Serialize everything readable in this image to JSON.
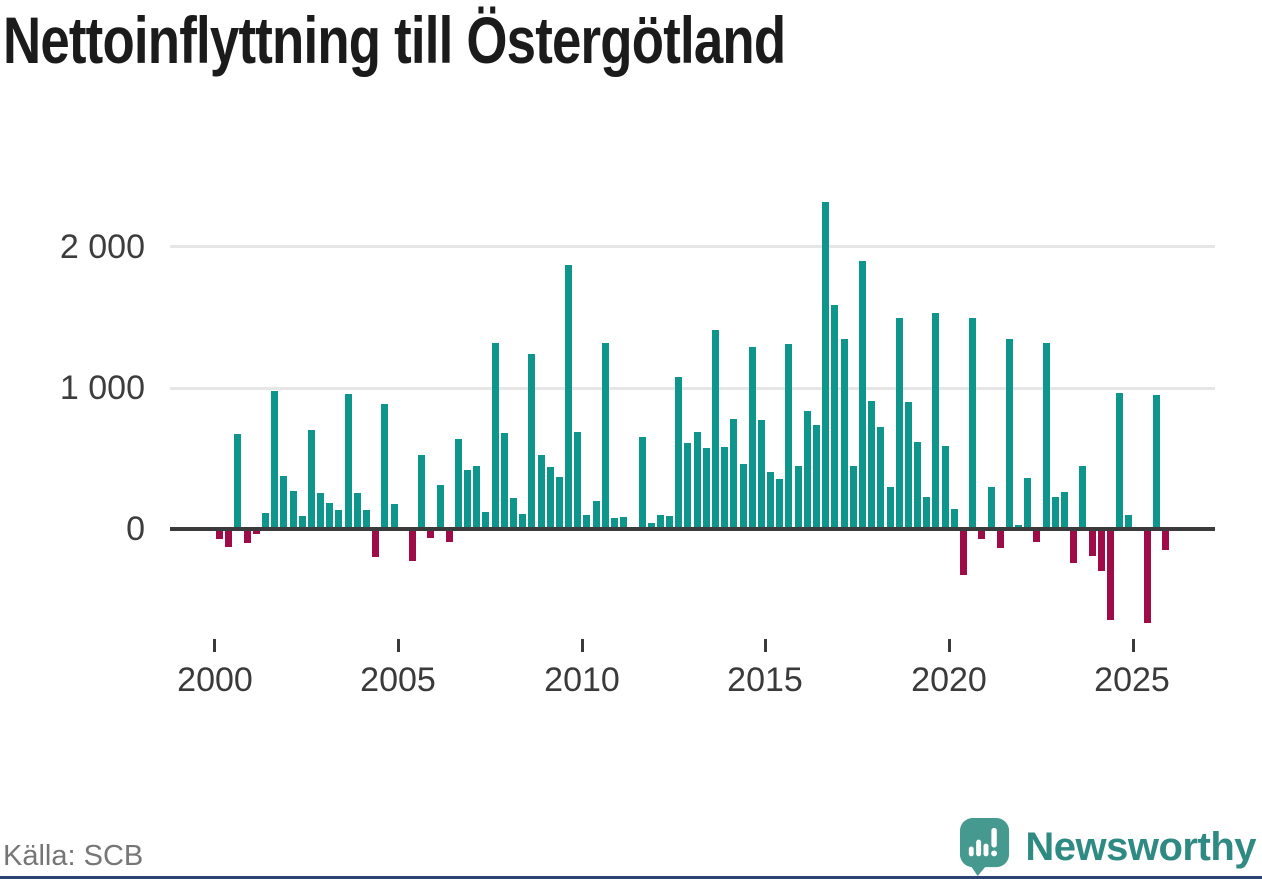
{
  "title": "Nettoinflyttning till Östergötland",
  "source": "Källa: SCB",
  "branding": {
    "name": "Newsworthy",
    "mark_color": "#45998f",
    "text_color": "#2e8a82"
  },
  "colors": {
    "positive": "#0f968c",
    "negative": "#a00c48",
    "grid": "#e6e6e6",
    "axis": "#3b3b3b",
    "bottom_strip": "#2d4373"
  },
  "chart_data": {
    "type": "bar",
    "title": "Nettoinflyttning till Östergötland",
    "xlabel": "",
    "ylabel": "",
    "grid": "horizontal",
    "legend": "none",
    "ylim": [
      -700,
      2400
    ],
    "y_ticks": [
      2000,
      1000,
      0
    ],
    "y_tick_labels": [
      "2 000",
      "1 000",
      "0"
    ],
    "x_tick_labels": [
      "2000",
      "2005",
      "2010",
      "2015",
      "2020",
      "2025"
    ],
    "frequency": "quarterly",
    "x": [
      "2000Q1",
      "2000Q2",
      "2000Q3",
      "2000Q4",
      "2001Q1",
      "2001Q2",
      "2001Q3",
      "2001Q4",
      "2002Q1",
      "2002Q2",
      "2002Q3",
      "2002Q4",
      "2003Q1",
      "2003Q2",
      "2003Q3",
      "2003Q4",
      "2004Q1",
      "2004Q2",
      "2004Q3",
      "2004Q4",
      "2005Q1",
      "2005Q2",
      "2005Q3",
      "2005Q4",
      "2006Q1",
      "2006Q2",
      "2006Q3",
      "2006Q4",
      "2007Q1",
      "2007Q2",
      "2007Q3",
      "2007Q4",
      "2008Q1",
      "2008Q2",
      "2008Q3",
      "2008Q4",
      "2009Q1",
      "2009Q2",
      "2009Q3",
      "2009Q4",
      "2010Q1",
      "2010Q2",
      "2010Q3",
      "2010Q4",
      "2011Q1",
      "2011Q2",
      "2011Q3",
      "2011Q4",
      "2012Q1",
      "2012Q2",
      "2012Q3",
      "2012Q4",
      "2013Q1",
      "2013Q2",
      "2013Q3",
      "2013Q4",
      "2014Q1",
      "2014Q2",
      "2014Q3",
      "2014Q4",
      "2015Q1",
      "2015Q2",
      "2015Q3",
      "2015Q4",
      "2016Q1",
      "2016Q2",
      "2016Q3",
      "2016Q4",
      "2017Q1",
      "2017Q2",
      "2017Q3",
      "2017Q4",
      "2018Q1",
      "2018Q2",
      "2018Q3",
      "2018Q4",
      "2019Q1",
      "2019Q2",
      "2019Q3",
      "2019Q4",
      "2020Q1",
      "2020Q2",
      "2020Q3",
      "2020Q4",
      "2021Q1",
      "2021Q2",
      "2021Q3",
      "2021Q4",
      "2022Q1",
      "2022Q2",
      "2022Q3",
      "2022Q4",
      "2023Q1",
      "2023Q2",
      "2023Q3",
      "2023Q4",
      "2024Q1",
      "2024Q2",
      "2024Q3",
      "2024Q4",
      "2025Q1",
      "2025Q2",
      "2025Q3",
      "2025Q4"
    ],
    "values": [
      -55,
      -115,
      675,
      -85,
      -20,
      115,
      980,
      375,
      270,
      95,
      700,
      255,
      185,
      135,
      960,
      255,
      135,
      -185,
      890,
      180,
      0,
      -215,
      525,
      -50,
      310,
      -75,
      640,
      415,
      450,
      120,
      1320,
      680,
      220,
      105,
      1240,
      525,
      440,
      370,
      1870,
      690,
      100,
      200,
      1320,
      75,
      85,
      0,
      655,
      40,
      100,
      90,
      1080,
      610,
      685,
      575,
      1410,
      580,
      780,
      460,
      1290,
      775,
      405,
      355,
      1310,
      450,
      835,
      740,
      2320,
      1590,
      1350,
      450,
      1900,
      910,
      725,
      295,
      1500,
      900,
      615,
      230,
      1530,
      590,
      140,
      -315,
      1500,
      -60,
      300,
      -120,
      1350,
      30,
      360,
      -80,
      1320,
      230,
      265,
      -225,
      445,
      -175,
      -285,
      -630,
      965,
      100,
      15,
      -655,
      950,
      -135
    ]
  }
}
